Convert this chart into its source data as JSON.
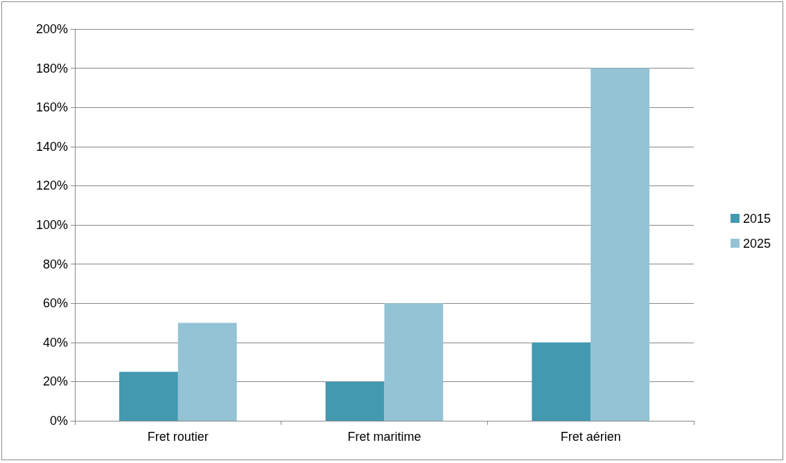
{
  "chart_data": {
    "type": "bar",
    "categories": [
      "Fret routier",
      "Fret maritime",
      "Fret aérien"
    ],
    "series": [
      {
        "name": "2015",
        "color": "#4399b0",
        "values": [
          25,
          20,
          40
        ]
      },
      {
        "name": "2025",
        "color": "#93c3d5",
        "values": [
          50,
          60,
          180
        ]
      }
    ],
    "ylim": [
      0,
      200
    ],
    "yticks": [
      {
        "value": 0,
        "label": "0%"
      },
      {
        "value": 20,
        "label": "20%"
      },
      {
        "value": 40,
        "label": "40%"
      },
      {
        "value": 60,
        "label": "60%"
      },
      {
        "value": 80,
        "label": "80%"
      },
      {
        "value": 100,
        "label": "100%"
      },
      {
        "value": 120,
        "label": "120%"
      },
      {
        "value": 140,
        "label": "140%"
      },
      {
        "value": 160,
        "label": "160%"
      },
      {
        "value": 180,
        "label": "180%"
      },
      {
        "value": 200,
        "label": "200%"
      }
    ],
    "grid": "y",
    "legend": "right"
  }
}
